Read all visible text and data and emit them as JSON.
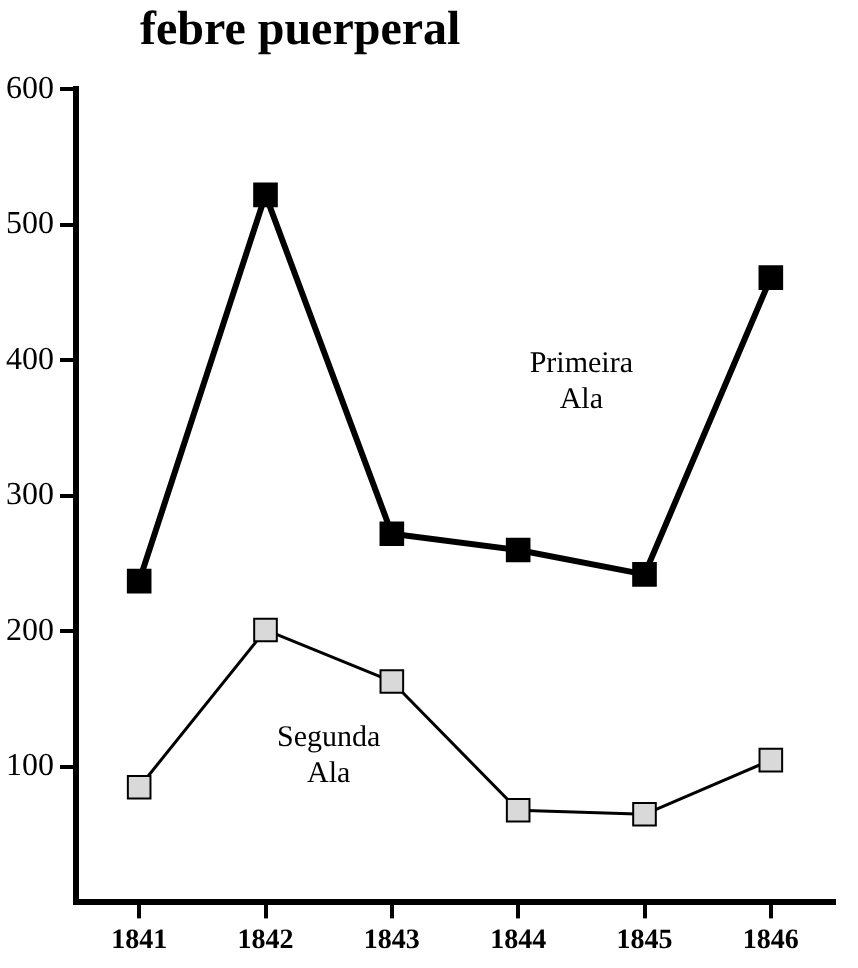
{
  "chart_data": {
    "type": "line",
    "title": "febre puerperal",
    "categories": [
      "1841",
      "1842",
      "1843",
      "1844",
      "1845",
      "1846"
    ],
    "series": [
      {
        "name": "Primeira Ala",
        "color": "#000000",
        "values": [
          237,
          522,
          272,
          260,
          242,
          461
        ]
      },
      {
        "name": "Segunda Ala",
        "color": "#d9d9d9",
        "values": [
          85,
          201,
          163,
          68,
          65,
          105
        ]
      }
    ],
    "ylim": [
      0,
      600
    ],
    "yticks": [
      100,
      200,
      300,
      400,
      500,
      600
    ],
    "grid": false,
    "legend": false,
    "marker": "square",
    "line_style": "solid"
  }
}
